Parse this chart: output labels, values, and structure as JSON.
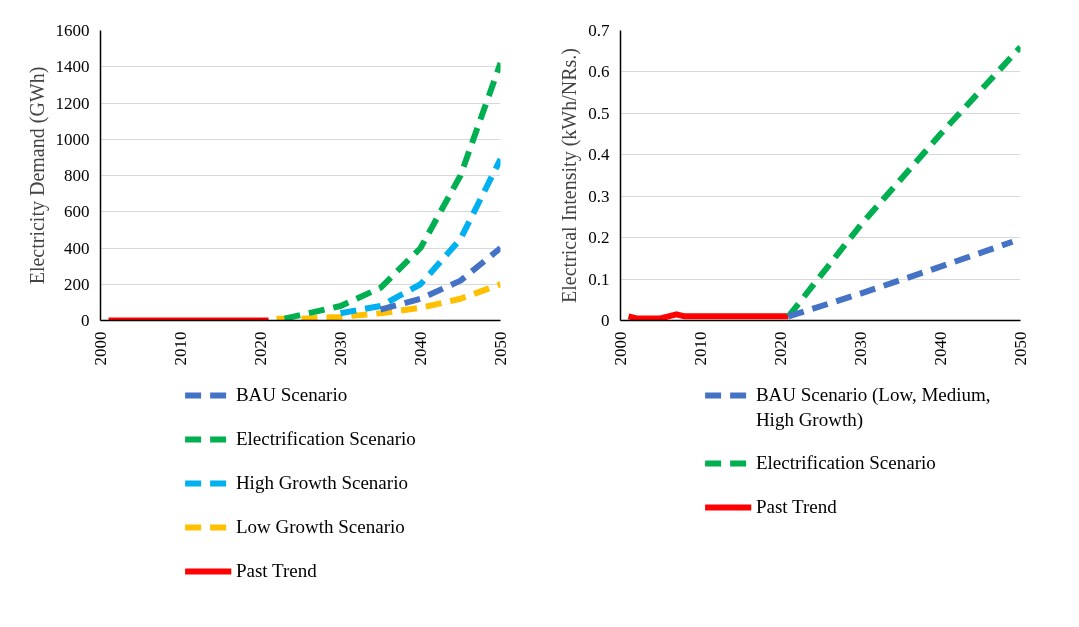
{
  "chart_data": [
    {
      "type": "line",
      "ylabel": "Electricity Demand (GWh)",
      "xlim": [
        2000,
        2050
      ],
      "xticks": [
        2000,
        2010,
        2020,
        2030,
        2040,
        2050
      ],
      "ylim": [
        0,
        1600
      ],
      "yticks": [
        0,
        200,
        400,
        600,
        800,
        1000,
        1200,
        1400,
        1600
      ],
      "grid": "y",
      "legend": "bottom",
      "series": [
        {
          "name": "BAU Scenario",
          "color": "#4472c4",
          "line_style": "dashed",
          "x": [
            2035,
            2040,
            2045,
            2050
          ],
          "values": [
            60,
            120,
            220,
            400
          ]
        },
        {
          "name": "Electrification Scenario",
          "color": "#00b050",
          "line_style": "dashed",
          "x": [
            2023,
            2025,
            2030,
            2035,
            2040,
            2045,
            2050
          ],
          "values": [
            10,
            30,
            80,
            180,
            400,
            800,
            1420
          ]
        },
        {
          "name": "High Growth Scenario",
          "color": "#00b0f0",
          "line_style": "dashed",
          "x": [
            2030,
            2035,
            2040,
            2045,
            2050
          ],
          "values": [
            40,
            80,
            200,
            450,
            890
          ]
        },
        {
          "name": "Low Growth Scenario",
          "color": "#ffc000",
          "line_style": "dashed",
          "x": [
            2022,
            2025,
            2030,
            2035,
            2040,
            2045,
            2050
          ],
          "values": [
            10,
            10,
            20,
            40,
            70,
            120,
            200
          ]
        },
        {
          "name": "Past Trend",
          "color": "#ff0000",
          "line_style": "solid",
          "x": [
            2001,
            2005,
            2010,
            2015,
            2021
          ],
          "values": [
            0,
            0,
            0,
            0,
            0
          ]
        }
      ]
    },
    {
      "type": "line",
      "ylabel": "Electrical Intensity (kWh/NRs.)",
      "xlim": [
        2000,
        2050
      ],
      "xticks": [
        2000,
        2010,
        2020,
        2030,
        2040,
        2050
      ],
      "ylim": [
        0,
        0.7
      ],
      "yticks": [
        0,
        0.1,
        0.2,
        0.3,
        0.4,
        0.5,
        0.6,
        0.7
      ],
      "grid": "y",
      "legend": "bottom",
      "series": [
        {
          "name": "BAU Scenario (Low, Medium, High Growth)",
          "color": "#4472c4",
          "line_style": "dashed",
          "x": [
            2021,
            2030,
            2040,
            2049
          ],
          "values": [
            0.01,
            0.065,
            0.13,
            0.19
          ]
        },
        {
          "name": "Electrification Scenario",
          "color": "#00b050",
          "line_style": "dashed",
          "x": [
            2021,
            2030,
            2040,
            2050
          ],
          "values": [
            0.01,
            0.23,
            0.45,
            0.66
          ]
        },
        {
          "name": "Past Trend",
          "color": "#ff0000",
          "line_style": "solid",
          "x": [
            2001,
            2002,
            2003,
            2004,
            2005,
            2006,
            2007,
            2008,
            2010,
            2015,
            2021
          ],
          "values": [
            0.01,
            0.005,
            0.005,
            0.005,
            0.005,
            0.01,
            0.015,
            0.01,
            0.01,
            0.01,
            0.01
          ]
        }
      ]
    }
  ]
}
